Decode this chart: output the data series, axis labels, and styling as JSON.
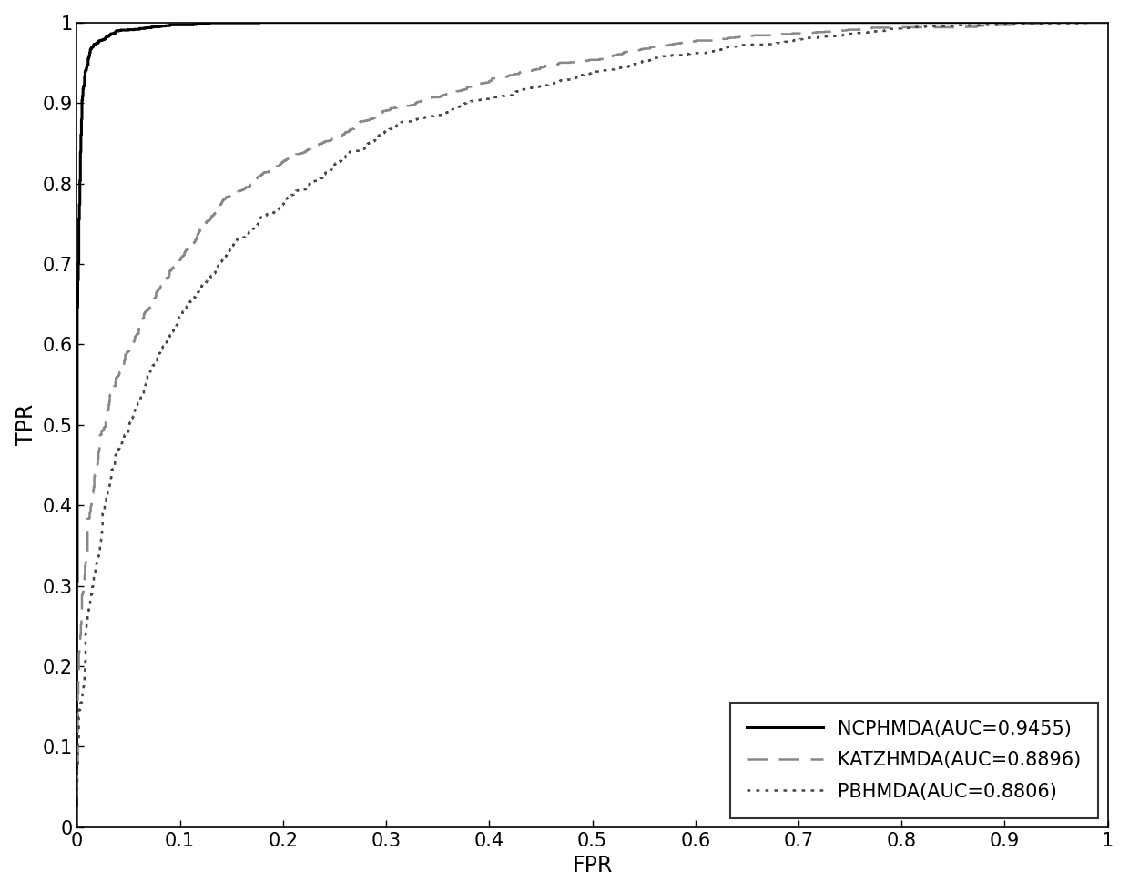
{
  "title": "",
  "xlabel": "FPR",
  "ylabel": "TPR",
  "xlim": [
    0,
    1
  ],
  "ylim": [
    0,
    1
  ],
  "xticks": [
    0,
    0.1,
    0.2,
    0.3,
    0.4,
    0.5,
    0.6,
    0.7,
    0.8,
    0.9,
    1
  ],
  "yticks": [
    0,
    0.1,
    0.2,
    0.3,
    0.4,
    0.5,
    0.6,
    0.7,
    0.8,
    0.9,
    1
  ],
  "lines": [
    {
      "label": "NCPHMDA(AUC=0.9455)",
      "linestyle": "solid",
      "linewidth": 2.2,
      "color": "#000000",
      "auc": 0.9455,
      "seed": 42,
      "mu": 3.5,
      "sigma": 0.8
    },
    {
      "label": "KATZHMDA(AUC=0.8896)",
      "linestyle": "dashed",
      "linewidth": 1.8,
      "color": "#888888",
      "auc": 0.8896,
      "seed": 7,
      "mu": 1.9,
      "sigma": 1.1
    },
    {
      "label": "PBHMDA(AUC=0.8806)",
      "linestyle": "dotted",
      "linewidth": 1.8,
      "color": "#444444",
      "auc": 0.8806,
      "seed": 13,
      "mu": 1.7,
      "sigma": 1.1
    }
  ],
  "legend_loc": "lower right",
  "legend_fontsize": 15,
  "tick_fontsize": 15,
  "axis_label_fontsize": 17,
  "background_color": "#ffffff",
  "figsize": [
    12.4,
    9.8
  ],
  "dpi": 100
}
